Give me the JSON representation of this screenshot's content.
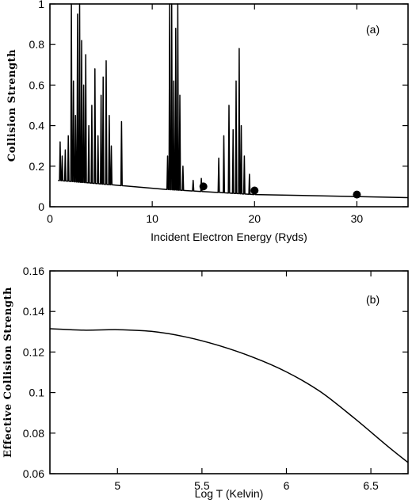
{
  "chart_data": [
    {
      "type": "line",
      "panel_label": "(a)",
      "xlabel": "Incident Electron Energy (Ryds)",
      "ylabel": "Collision Strength",
      "xlim": [
        0,
        35
      ],
      "ylim": [
        0,
        1
      ],
      "xticks": [
        0,
        10,
        20,
        30
      ],
      "yticks": [
        0,
        0.2,
        0.4,
        0.6,
        0.8,
        1
      ],
      "ytick_labels": [
        "0",
        "0.2",
        "0.4",
        "0.6",
        "0.8",
        "1"
      ],
      "series": [
        {
          "style": "line",
          "background": [
            [
              0.8,
              0.13
            ],
            [
              11.5,
              0.085
            ],
            [
              20,
              0.06
            ],
            [
              35,
              0.045
            ]
          ],
          "resonances": [
            [
              1.0,
              0.32
            ],
            [
              1.2,
              0.25
            ],
            [
              1.5,
              0.28
            ],
            [
              1.8,
              0.35
            ],
            [
              2.1,
              1.0
            ],
            [
              2.3,
              0.62
            ],
            [
              2.5,
              0.45
            ],
            [
              2.7,
              0.95
            ],
            [
              2.9,
              1.0
            ],
            [
              3.1,
              0.82
            ],
            [
              3.3,
              0.6
            ],
            [
              3.5,
              0.75
            ],
            [
              3.8,
              0.4
            ],
            [
              4.1,
              0.5
            ],
            [
              4.4,
              0.68
            ],
            [
              4.7,
              0.35
            ],
            [
              5.0,
              0.55
            ],
            [
              5.2,
              0.64
            ],
            [
              5.5,
              0.72
            ],
            [
              5.8,
              0.45
            ],
            [
              6.0,
              0.3
            ],
            [
              7.0,
              0.42
            ],
            [
              11.5,
              0.25
            ],
            [
              11.7,
              1.0
            ],
            [
              11.9,
              1.0
            ],
            [
              12.1,
              0.62
            ],
            [
              12.3,
              0.88
            ],
            [
              12.5,
              1.0
            ],
            [
              12.7,
              0.55
            ],
            [
              13.0,
              0.2
            ],
            [
              14.0,
              0.13
            ],
            [
              14.8,
              0.14
            ],
            [
              16.5,
              0.24
            ],
            [
              17.0,
              0.35
            ],
            [
              17.5,
              0.5
            ],
            [
              17.9,
              0.38
            ],
            [
              18.2,
              0.62
            ],
            [
              18.5,
              0.78
            ],
            [
              18.7,
              0.4
            ],
            [
              19.0,
              0.25
            ],
            [
              19.5,
              0.16
            ],
            [
              20.0,
              0.09
            ]
          ]
        },
        {
          "style": "markers",
          "x": [
            15,
            20,
            30
          ],
          "y": [
            0.1,
            0.08,
            0.06
          ]
        }
      ]
    },
    {
      "type": "line",
      "panel_label": "(b)",
      "xlabel": "Log T (Kelvin)",
      "ylabel": "Effective Collision Strength",
      "xlim": [
        4.6,
        6.72
      ],
      "ylim": [
        0.06,
        0.16
      ],
      "xticks": [
        5,
        5.5,
        6,
        6.5
      ],
      "xtick_labels": [
        "5",
        "5.5",
        "6",
        "6.5"
      ],
      "yticks": [
        0.06,
        0.08,
        0.1,
        0.12,
        0.14,
        0.16
      ],
      "ytick_labels": [
        "0.06",
        "0.08",
        "0.1",
        "0.12",
        "0.14",
        "0.16"
      ],
      "x": [
        4.6,
        4.8,
        5.0,
        5.2,
        5.4,
        5.6,
        5.8,
        6.0,
        6.2,
        6.4,
        6.6,
        6.72
      ],
      "y": [
        0.1315,
        0.1308,
        0.131,
        0.1302,
        0.1275,
        0.1232,
        0.1175,
        0.1102,
        0.1005,
        0.0875,
        0.0735,
        0.0655
      ]
    }
  ]
}
